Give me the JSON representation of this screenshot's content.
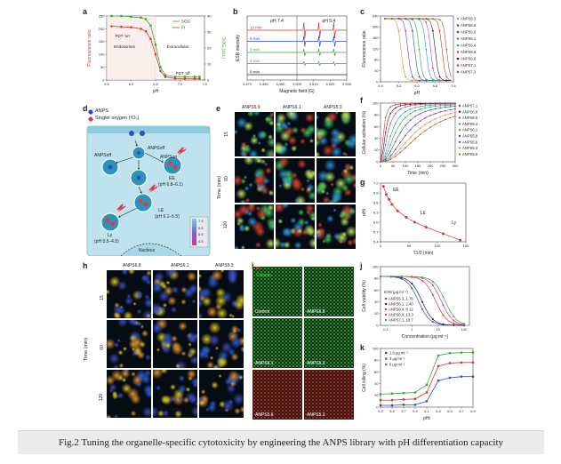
{
  "panels": {
    "a": "a",
    "b": "b",
    "c": "c",
    "d": "d",
    "e": "e",
    "f": "f",
    "g": "g",
    "h": "h",
    "i": "i",
    "j": "j",
    "k": "k"
  },
  "caption": "Fig.2 Tuning the organelle-specific cytotoxicity by engineering the ANPS library with pH differentiation capacity",
  "chart_data": [
    {
      "id": "a",
      "type": "line",
      "xlabel": "pH",
      "ylabel": "Fluorescence ratio",
      "ylabel2": "SOG (a.u.)",
      "xlim": [
        5.5,
        7.5
      ],
      "xticks": [
        "5.5",
        "6.0",
        "6.5",
        "7.0",
        "7.5"
      ],
      "yticks": [
        "0",
        "50",
        "100",
        "150",
        "200",
        "250"
      ],
      "yticks2": [
        "0",
        "10",
        "20",
        "30",
        "40"
      ],
      "series": [
        {
          "name": "SOG",
          "color": "#3aa63a",
          "x": [
            5.6,
            5.8,
            6.0,
            6.2,
            6.3,
            6.4,
            6.5,
            6.6,
            6.7,
            6.9,
            7.1,
            7.3,
            7.4
          ],
          "y": [
            40,
            40,
            39.5,
            39,
            38,
            34,
            22,
            8,
            3,
            2,
            2,
            2,
            2
          ]
        },
        {
          "name": "FI",
          "color": "#d8352a",
          "x": [
            5.6,
            5.8,
            6.0,
            6.2,
            6.3,
            6.4,
            6.5,
            6.6,
            6.7,
            6.9,
            7.1,
            7.3,
            7.4
          ],
          "y": [
            210,
            208,
            206,
            200,
            190,
            160,
            100,
            35,
            12,
            6,
            5,
            5,
            5
          ]
        }
      ],
      "annotations": [
        "PDT 'on'",
        "Endosomes",
        "Extracellular",
        "PDT 'off'"
      ]
    },
    {
      "id": "b",
      "type": "line",
      "xlabel": "Magnetic field (G)",
      "ylabel": "ESR intensity",
      "xticks": [
        "3,470",
        "3,480",
        "3,490",
        "3,500",
        "3,510",
        "3,520",
        "3,530"
      ],
      "headers": [
        "pH 7.4",
        "pH 5.4"
      ],
      "series": [
        {
          "name": "10 min",
          "color": "#d8352a"
        },
        {
          "name": "5 min",
          "color": "#2a4fc7"
        },
        {
          "name": "3 min",
          "color": "#3aa63a"
        },
        {
          "name": "1 min",
          "color": "#3aa63a"
        },
        {
          "name": "0 min",
          "color": "#222222"
        }
      ]
    },
    {
      "id": "c",
      "type": "line",
      "xlabel": "pH",
      "ylabel": "Fluorescence ratio",
      "xticks": [
        "4.4",
        "5.2",
        "6.0",
        "6.8",
        "7.6"
      ],
      "yticks": [
        "0",
        "40",
        "80",
        "120",
        "160",
        "200",
        "240"
      ],
      "series": [
        {
          "name": "ANPS5.3",
          "color": "#f08a24",
          "mid": 5.3
        },
        {
          "name": "ANPS5.6",
          "color": "#6b3fa0",
          "mid": 5.6
        },
        {
          "name": "ANPS5.9",
          "color": "#2a4fc7",
          "mid": 5.9
        },
        {
          "name": "ANPS6.1",
          "color": "#3aa63a",
          "mid": 6.1
        },
        {
          "name": "ANPS6.4",
          "color": "#19a3b8",
          "mid": 6.4
        },
        {
          "name": "ANPS6.6",
          "color": "#c73aa0",
          "mid": 6.6
        },
        {
          "name": "ANPS6.8",
          "color": "#222222",
          "mid": 6.8
        },
        {
          "name": "ANPS7.1",
          "color": "#d8352a",
          "mid": 7.1
        },
        {
          "name": "ANPS7.3",
          "color": "#8f6b2a",
          "mid": 7.3
        }
      ]
    },
    {
      "id": "f",
      "type": "line",
      "xlabel": "Time (min)",
      "ylabel": "Cellular activation (%)",
      "xticks": [
        "0",
        "50",
        "100",
        "150",
        "200",
        "250",
        "300"
      ],
      "yticks": [
        "0",
        "20",
        "40",
        "60",
        "80",
        "100"
      ],
      "series": [
        {
          "name": "ANPS7.1",
          "color": "#d8352a",
          "t50": 12
        },
        {
          "name": "ANPS6.8",
          "color": "#222222",
          "t50": 20
        },
        {
          "name": "ANPS6.6",
          "color": "#c73aa0",
          "t50": 30
        },
        {
          "name": "ANPS6.4",
          "color": "#19a3b8",
          "t50": 45
        },
        {
          "name": "ANPS6.1",
          "color": "#3aa63a",
          "t50": 60
        },
        {
          "name": "ANPS5.9",
          "color": "#2a4fc7",
          "t50": 80
        },
        {
          "name": "ANPS5.6",
          "color": "#6b3fa0",
          "t50": 110
        },
        {
          "name": "ANPS5.3",
          "color": "#f08a24",
          "t50": 140
        },
        {
          "name": "ANPS5.0",
          "color": "#8f6b2a",
          "t50": 170
        }
      ]
    },
    {
      "id": "g",
      "type": "scatter",
      "xlabel": "T1/2 (min)",
      "ylabel": "pHt",
      "xticks": [
        "0",
        "50",
        "100",
        "150"
      ],
      "yticks": [
        "5.4",
        "5.7",
        "6.0",
        "6.3",
        "6.6",
        "6.9",
        "7.2"
      ],
      "points_x": [
        5,
        10,
        15,
        20,
        30,
        45,
        60,
        80,
        110,
        140
      ],
      "points_y": [
        7.1,
        6.85,
        6.7,
        6.55,
        6.35,
        6.15,
        6.0,
        5.85,
        5.65,
        5.45
      ],
      "annotations": [
        "EE",
        "LE",
        "Ly"
      ]
    },
    {
      "id": "j",
      "type": "line",
      "xlabel": "Concentration (μg ml⁻¹)",
      "ylabel": "Cell viability (%)",
      "xticks": [
        "0.1",
        "1",
        "10",
        "100"
      ],
      "yticks": [
        "0",
        "20",
        "40",
        "60",
        "80",
        "100"
      ],
      "legend_title": "IC50 (μg ml⁻¹)",
      "series": [
        {
          "name": "ANPS5.3, 1.76",
          "color": "#2a4fc7",
          "ic50": 1.76
        },
        {
          "name": "ANPS6.1, 2.40",
          "color": "#222222",
          "ic50": 2.4
        },
        {
          "name": "ANPS6.4, 8.12",
          "color": "#d8352a",
          "ic50": 8.12
        },
        {
          "name": "ANPS6.8, 13.3",
          "color": "#c73aa0",
          "ic50": 13.3
        },
        {
          "name": "ANPS7.1, 18.7",
          "color": "#3aa63a",
          "ic50": 18.7
        }
      ]
    },
    {
      "id": "k",
      "type": "line",
      "xlabel": "pHt",
      "ylabel": "Cell killing (%)",
      "xticks": [
        "5.3",
        "5.5",
        "5.7",
        "5.9",
        "6.1",
        "6.3",
        "6.5",
        "6.7",
        "6.9"
      ],
      "yticks": [
        "0",
        "20",
        "40",
        "60",
        "80",
        "100"
      ],
      "series": [
        {
          "name": "1.5 μg ml⁻¹",
          "color": "#2a4fc7",
          "y": [
            3,
            3,
            4,
            4,
            10,
            45,
            50,
            52,
            52
          ]
        },
        {
          "name": "3 μg ml⁻¹",
          "color": "#d8352a",
          "y": [
            12,
            12,
            13,
            14,
            25,
            70,
            75,
            76,
            76
          ]
        },
        {
          "name": "6 μg ml⁻¹",
          "color": "#3aa63a",
          "y": [
            22,
            23,
            24,
            25,
            38,
            88,
            92,
            93,
            93
          ]
        }
      ]
    }
  ],
  "panel_d": {
    "legend": [
      "ANPS",
      "Singlet oxygen (¹O₂)"
    ],
    "labels": {
      "anps_off": "ANPSoff",
      "anps_on": "ANPSon",
      "ee": "EE",
      "ee_ph": "(pH 6.8–6.1)",
      "le": "LE",
      "le_ph": "(pH 6.1–5.5)",
      "ly": "Ly",
      "ly_ph": "(pH 5.5–4.5)",
      "nucleus": "Nucleus",
      "scale": [
        "7.4",
        "6.5",
        "5.5",
        "4.5"
      ]
    }
  },
  "panel_e": {
    "cols": [
      "ANPS5.9",
      "ANPS6.1",
      "ANPS5.3"
    ],
    "rows": [
      "15",
      "60",
      "120"
    ],
    "row_axis": "Time (min)",
    "legend": [
      "ANPS",
      "Rab5a",
      "LAMP1"
    ]
  },
  "panel_h": {
    "cols": [
      "ANPS6.8",
      "ANPS6.1",
      "ANPS5.3"
    ],
    "rows": [
      "15",
      "60",
      "120"
    ],
    "row_axis": "Time (min)",
    "legend": [
      "ANPS",
      "AO+Ly"
    ]
  },
  "panel_i": {
    "legend": [
      "PI",
      "Calcein"
    ],
    "cells": [
      "Control",
      "ANPS6.8",
      "ANPS6.1",
      "ANPS5.3",
      "ANPS5.6",
      "ANPS5.3"
    ]
  }
}
